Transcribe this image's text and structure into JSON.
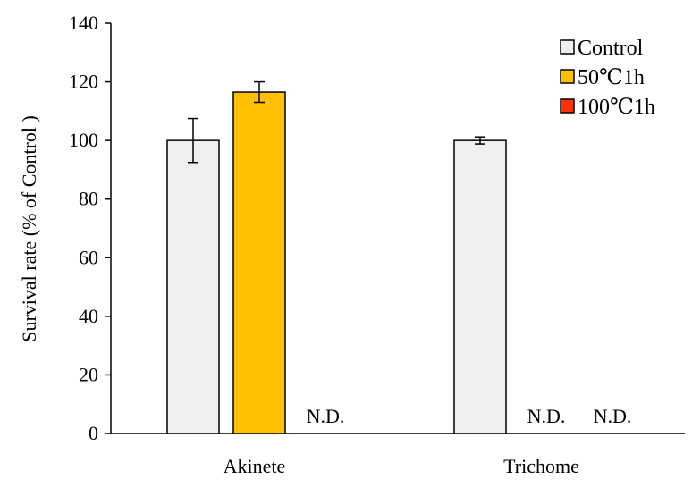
{
  "chart_data": {
    "type": "bar",
    "title": "",
    "xlabel": "",
    "ylabel": "Survival rate (% of Control )",
    "ylim": [
      0,
      140
    ],
    "yticks": [
      0,
      20,
      40,
      60,
      80,
      100,
      120,
      140
    ],
    "grid": false,
    "legend_position": "top-right",
    "categories": [
      "Akinete",
      "Trichome"
    ],
    "series": [
      {
        "name": "Control",
        "color": "#efefef",
        "values": [
          100,
          100
        ],
        "errors": [
          7.5,
          1.2
        ]
      },
      {
        "name": "50℃1h",
        "color": "#ffc000",
        "values": [
          116.5,
          null
        ],
        "errors": [
          3.5,
          null
        ]
      },
      {
        "name": "100℃1h",
        "color": "#ff3300",
        "values": [
          null,
          null
        ],
        "errors": [
          null,
          null
        ]
      }
    ],
    "not_detected_label": "N.D."
  }
}
